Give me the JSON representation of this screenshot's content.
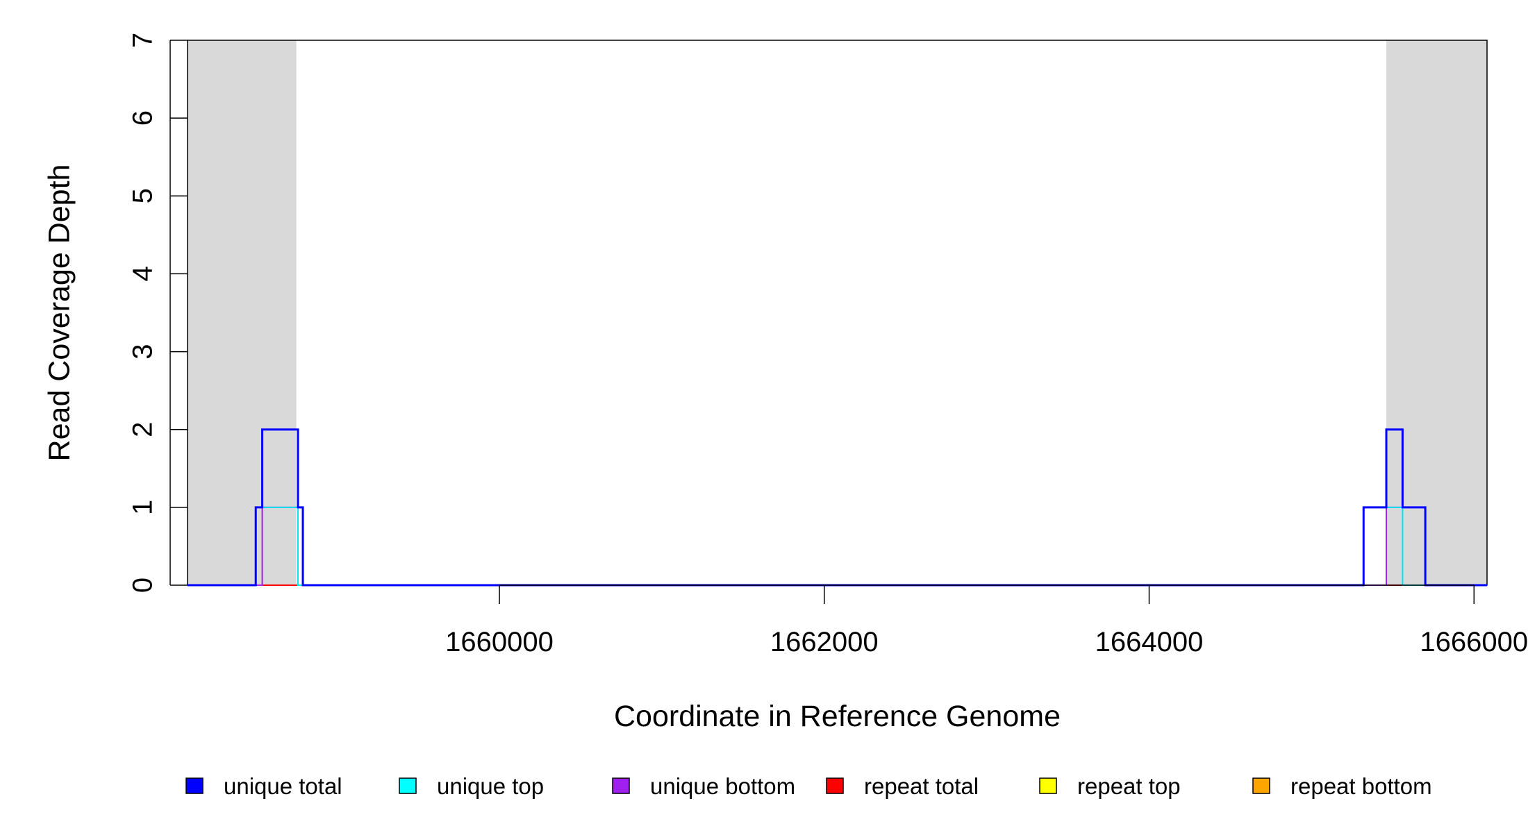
{
  "chart_data": {
    "type": "line",
    "xlabel": "Coordinate in Reference Genome",
    "ylabel": "Read Coverage Depth",
    "xlim": [
      1658080,
      1666080
    ],
    "ylim": [
      0,
      7
    ],
    "x_ticks": [
      1660000,
      1662000,
      1664000,
      1666000
    ],
    "x_tick_labels": [
      "1660000",
      "1662000",
      "1664000",
      "1666000"
    ],
    "y_ticks": [
      0,
      1,
      2,
      3,
      4,
      5,
      6,
      7
    ],
    "y_tick_labels": [
      "0",
      "1",
      "2",
      "3",
      "4",
      "5",
      "6",
      "7"
    ],
    "shaded_regions": [
      {
        "start": 1658080,
        "end": 1658750,
        "color": "#d9d9d9"
      },
      {
        "start": 1665460,
        "end": 1666080,
        "color": "#d9d9d9"
      }
    ],
    "series": [
      {
        "name": "unique total",
        "color": "#0000ff",
        "x": [
          1658080,
          1658500,
          1658540,
          1658760,
          1658790,
          1665320,
          1665460,
          1665560,
          1665700,
          1666080
        ],
        "y": [
          0,
          1,
          2,
          1,
          0,
          1,
          2,
          1,
          0,
          0
        ]
      },
      {
        "name": "unique top",
        "color": "#00e5ee",
        "x": [
          1658080,
          1658500,
          1658760,
          1665320,
          1665560,
          1666080
        ],
        "y": [
          0,
          1,
          0,
          1,
          0,
          0
        ]
      },
      {
        "name": "unique bottom",
        "color": "#a020f0",
        "x": [
          1658080,
          1658540,
          1658790,
          1665460,
          1665700,
          1666080
        ],
        "y": [
          0,
          1,
          0,
          1,
          0,
          0
        ]
      },
      {
        "name": "repeat total",
        "color": "#ff0000",
        "x": [
          1658080,
          1666080
        ],
        "y": [
          0,
          0
        ]
      },
      {
        "name": "repeat top",
        "color": "#ffff00",
        "x": [
          1658080,
          1666080
        ],
        "y": [
          0,
          0
        ]
      },
      {
        "name": "repeat bottom",
        "color": "#ffa500",
        "x": [
          1658080,
          1666080
        ],
        "y": [
          0,
          0
        ]
      }
    ],
    "legend": {
      "placement": "bottom",
      "entries": [
        {
          "label": "unique total",
          "color": "#0000ff"
        },
        {
          "label": "unique top",
          "color": "#00ffff"
        },
        {
          "label": "unique bottom",
          "color": "#a020f0"
        },
        {
          "label": "repeat total",
          "color": "#ff0000"
        },
        {
          "label": "repeat top",
          "color": "#ffff00"
        },
        {
          "label": "repeat bottom",
          "color": "#ffa500"
        }
      ]
    }
  }
}
